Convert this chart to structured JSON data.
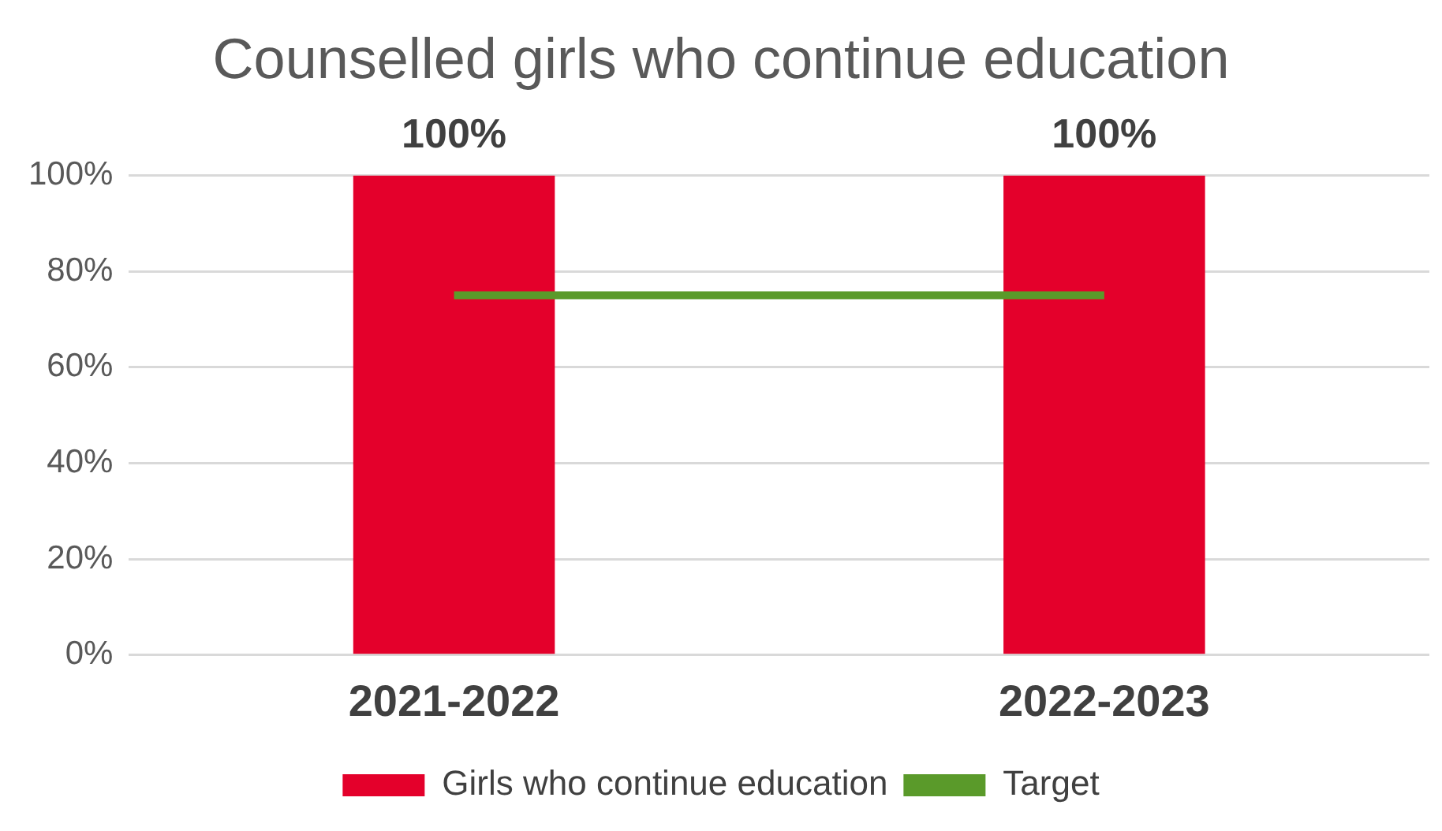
{
  "chart_data": {
    "type": "bar",
    "title": "Counselled girls who continue education",
    "categories": [
      "2021-2022",
      "2022-2023"
    ],
    "series": [
      {
        "name": "Girls who continue education",
        "color": "#e4002b",
        "values": [
          100,
          100
        ],
        "value_labels": [
          "100%",
          "100%"
        ]
      },
      {
        "name": "Target",
        "type": "line",
        "color": "#5a9a2a",
        "values": [
          75,
          75
        ]
      }
    ],
    "ylim": [
      0,
      100
    ],
    "yticks": [
      {
        "value": 0,
        "label": "0%"
      },
      {
        "value": 20,
        "label": "20%"
      },
      {
        "value": 40,
        "label": "40%"
      },
      {
        "value": 60,
        "label": "60%"
      },
      {
        "value": 80,
        "label": "80%"
      },
      {
        "value": 100,
        "label": "100%"
      }
    ],
    "grid": "y",
    "legend": "bottom",
    "marker": "none",
    "line_style": "solid"
  }
}
